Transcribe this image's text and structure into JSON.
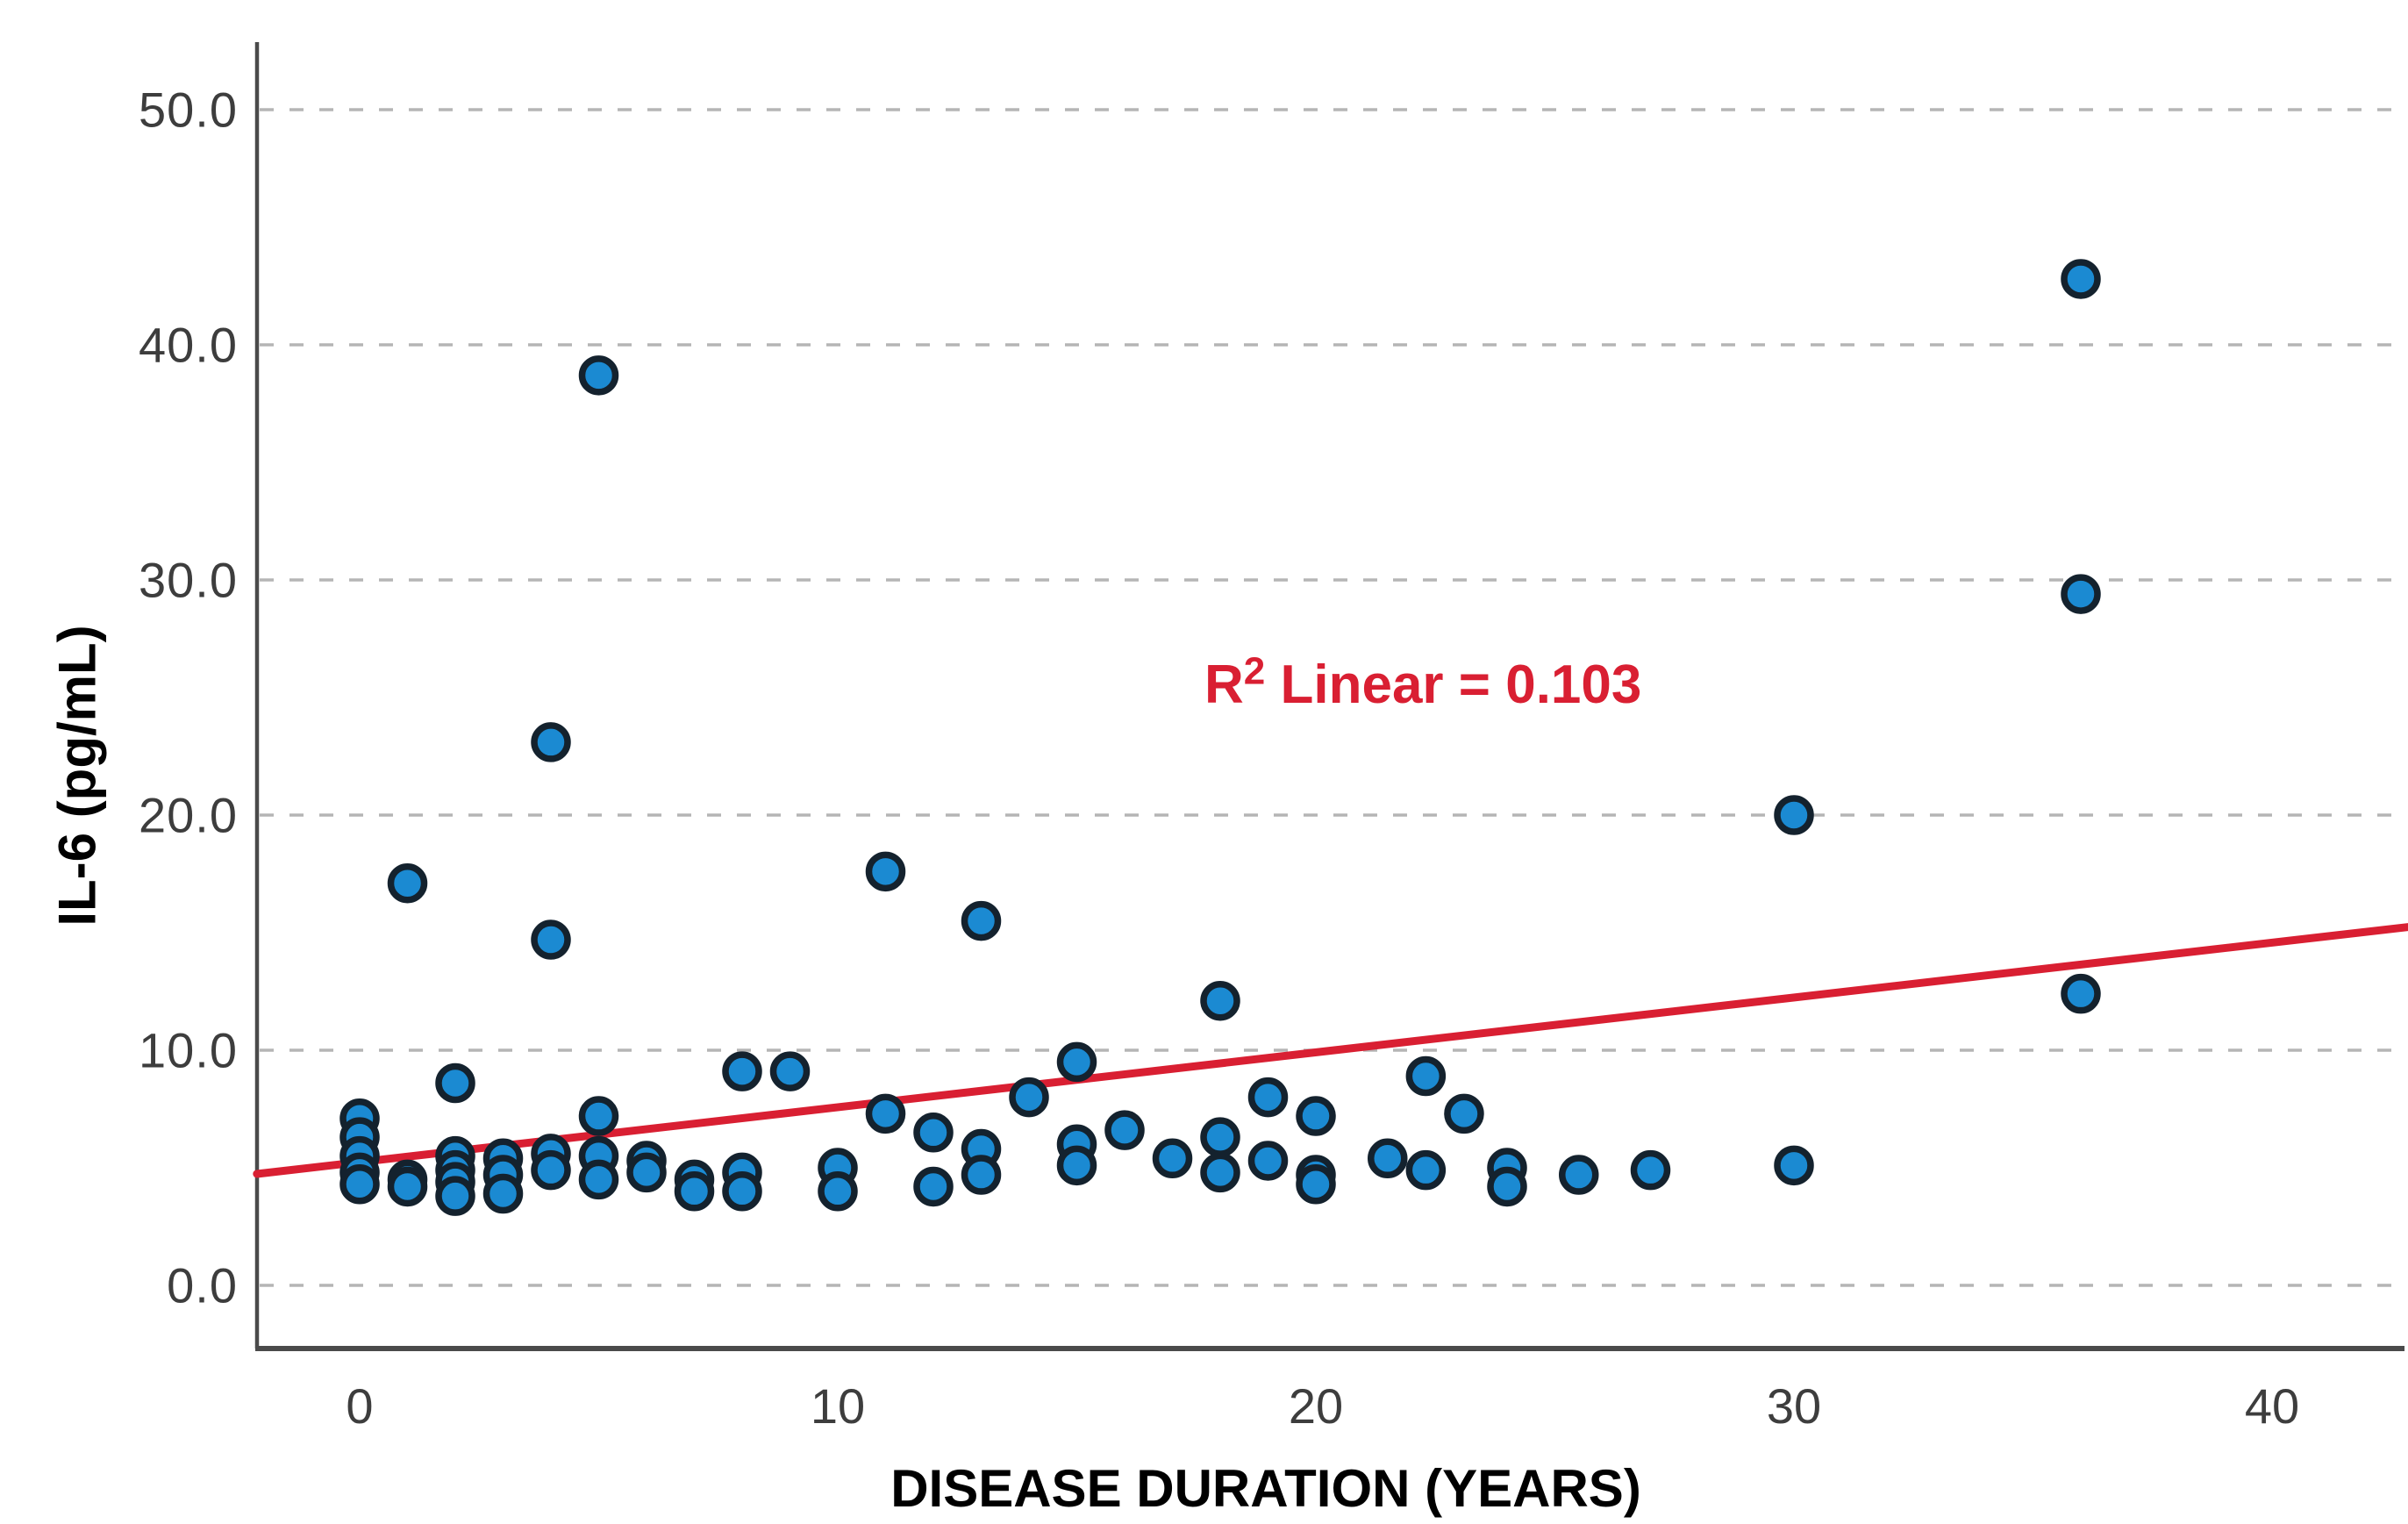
{
  "chart_data": {
    "type": "scatter",
    "title": "",
    "xlabel": "DISEASE DURATION (YEARS)",
    "ylabel": "IL-6 (pg/mL)",
    "x_ticks": [
      0,
      10,
      20,
      30,
      40
    ],
    "x_tick_labels": [
      "0",
      "10",
      "20",
      "30",
      "40"
    ],
    "y_ticks": [
      0,
      10,
      20,
      30,
      40,
      50
    ],
    "y_tick_labels": [
      "0.0",
      "10.0",
      "20.0",
      "30.0",
      "40.0",
      "50.0"
    ],
    "xlim": [
      -2.15,
      42.85
    ],
    "ylim": [
      -2.7,
      52.8
    ],
    "grid": "horizontal-dashed",
    "legend_position": "none",
    "points": [
      [
        0,
        7.1
      ],
      [
        0,
        6.3
      ],
      [
        0,
        5.5
      ],
      [
        0,
        4.8
      ],
      [
        0,
        4.3
      ],
      [
        1,
        17.1
      ],
      [
        1,
        4.5
      ],
      [
        1,
        4.2
      ],
      [
        2,
        8.6
      ],
      [
        2,
        5.5
      ],
      [
        2,
        4.9
      ],
      [
        2,
        4.4
      ],
      [
        2,
        3.8
      ],
      [
        3,
        5.4
      ],
      [
        3,
        4.7
      ],
      [
        3,
        3.9
      ],
      [
        4,
        23.1
      ],
      [
        4,
        14.7
      ],
      [
        4,
        5.6
      ],
      [
        4,
        4.9
      ],
      [
        5,
        38.7
      ],
      [
        5,
        7.2
      ],
      [
        5,
        5.5
      ],
      [
        5,
        4.5
      ],
      [
        6,
        5.3
      ],
      [
        6,
        4.8
      ],
      [
        7,
        4.5
      ],
      [
        7,
        4.0
      ],
      [
        8,
        9.1
      ],
      [
        8,
        4.8
      ],
      [
        8,
        4.0
      ],
      [
        9,
        9.1
      ],
      [
        10,
        5.0
      ],
      [
        10,
        4.0
      ],
      [
        11,
        17.6
      ],
      [
        11,
        7.3
      ],
      [
        12,
        6.5
      ],
      [
        12,
        4.2
      ],
      [
        13,
        15.5
      ],
      [
        13,
        5.8
      ],
      [
        13,
        4.7
      ],
      [
        14,
        8.0
      ],
      [
        15,
        9.5
      ],
      [
        15,
        6.0
      ],
      [
        15,
        5.1
      ],
      [
        16,
        6.6
      ],
      [
        17,
        5.4
      ],
      [
        18,
        12.1
      ],
      [
        18,
        6.3
      ],
      [
        18,
        4.8
      ],
      [
        19,
        8.0
      ],
      [
        19,
        5.3
      ],
      [
        20,
        7.2
      ],
      [
        20,
        4.7
      ],
      [
        20,
        4.3
      ],
      [
        21.5,
        5.4
      ],
      [
        22.3,
        8.9
      ],
      [
        22.3,
        4.9
      ],
      [
        23.1,
        7.3
      ],
      [
        24,
        5.0
      ],
      [
        24,
        4.2
      ],
      [
        25.5,
        4.7
      ],
      [
        27,
        4.9
      ],
      [
        30,
        20.0
      ],
      [
        30,
        5.1
      ],
      [
        36,
        42.8
      ],
      [
        36,
        29.4
      ],
      [
        36,
        12.4
      ]
    ],
    "trendline": {
      "type": "linear",
      "x1": -2.15,
      "y1": 4.74,
      "x2": 42.85,
      "y2": 15.24,
      "r_squared": 0.103
    },
    "colors": {
      "marker_fill": "#1b8ad2",
      "marker_edge": "#14222e",
      "trendline": "#d91f32",
      "annotation_text": "#d91f32",
      "gridline": "#b5b5b5",
      "axis_line": "#4a4a4a",
      "tick_label": "#3d3d3d",
      "axis_title": "#000000"
    }
  },
  "annotation": {
    "r_base": "R",
    "exponent": "2",
    "rest": " Linear = 0.103"
  },
  "axis_titles": {
    "y": "IL-6 (pg/mL)",
    "x": "DISEASE DURATION (YEARS)"
  }
}
